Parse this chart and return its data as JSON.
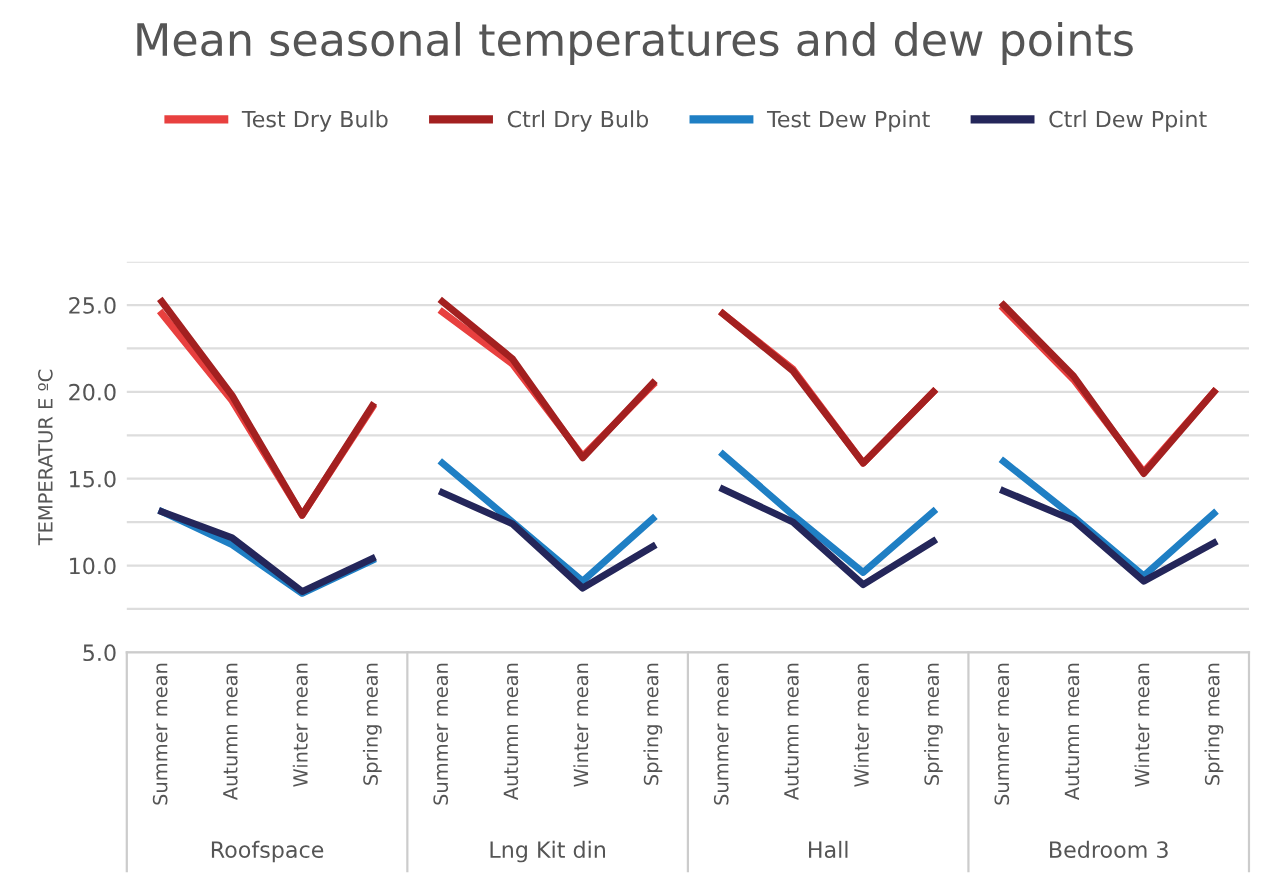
{
  "chart_data": {
    "type": "line",
    "title": "Mean seasonal temperatures and dew points",
    "ylabel": "TEMPERATUR E ºC",
    "categories": [
      "Summer mean",
      "Autumn mean",
      "Winter mean",
      "Spring mean",
      "Summer mean",
      "Autumn mean",
      "Winter mean",
      "Spring mean",
      "Summer mean",
      "Autumn mean",
      "Winter mean",
      "Spring mean",
      "Summer mean",
      "Autumn mean",
      "Winter mean",
      "Spring mean"
    ],
    "annotations": [
      "Roofspace",
      "Lng Kit din",
      "Hall",
      "Bedroom 3"
    ],
    "series": [
      {
        "name": "Test Dry Bulb",
        "color": "#e8403f",
        "values": [
          24.5,
          19.5,
          12.9,
          19.1,
          24.6,
          21.6,
          16.3,
          20.4,
          24.5,
          21.3,
          15.9,
          20.0,
          24.8,
          20.7,
          15.4,
          20.0
        ]
      },
      {
        "name": "Ctrl Dry Bulb",
        "color": "#a32020",
        "values": [
          25.2,
          19.8,
          12.9,
          19.2,
          25.2,
          21.9,
          16.2,
          20.5,
          24.5,
          21.2,
          15.9,
          20.0,
          25.0,
          20.9,
          15.3,
          20.0
        ]
      },
      {
        "name": "Test Dew Ppint",
        "color": "#1f7fc4",
        "values": [
          13.1,
          11.2,
          8.4,
          10.3,
          15.9,
          12.5,
          9.1,
          12.7,
          16.4,
          12.9,
          9.6,
          13.1,
          16.0,
          12.8,
          9.4,
          13.0
        ]
      },
      {
        "name": "Ctrl Dew Ppint",
        "color": "#24265a",
        "values": [
          13.1,
          11.6,
          8.5,
          10.4,
          14.2,
          12.4,
          8.7,
          11.1,
          14.4,
          12.5,
          8.9,
          11.4,
          14.3,
          12.6,
          9.1,
          11.3
        ]
      }
    ],
    "ylim": [
      5,
      27.5
    ],
    "yticks": [
      {
        "value": 5,
        "label": "5.0"
      },
      {
        "value": 7.5,
        "label": null
      },
      {
        "value": 10,
        "label": "10.0"
      },
      {
        "value": 12.5,
        "label": null
      },
      {
        "value": 15,
        "label": "15.0"
      },
      {
        "value": 17.5,
        "label": null
      },
      {
        "value": 20,
        "label": "20.0"
      },
      {
        "value": 22.5,
        "label": null
      },
      {
        "value": 25,
        "label": "25.0"
      },
      {
        "value": 27.5,
        "label": null
      }
    ],
    "grid": "y",
    "legend": "top",
    "line_style": "solid",
    "marker": "none"
  }
}
